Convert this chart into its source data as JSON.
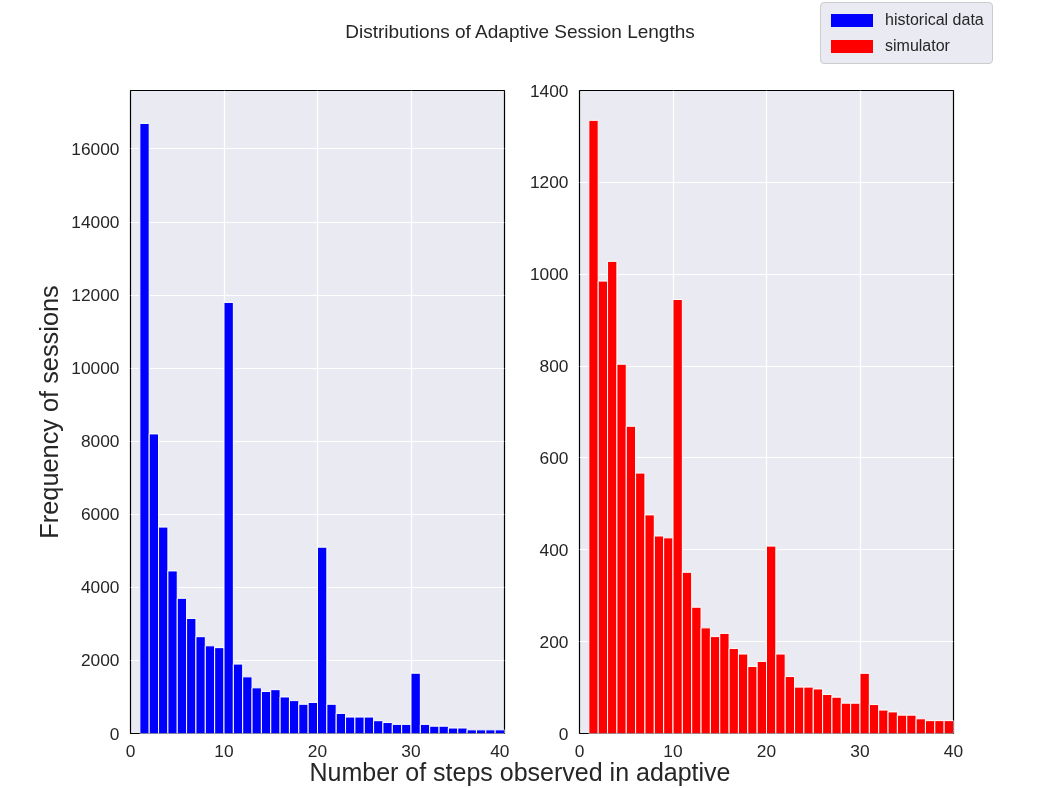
{
  "chart_data": [
    {
      "type": "histogram",
      "title": "Distributions of Adaptive Session Lengths",
      "xlabel": "Number of steps observed in adaptive",
      "ylabel": "Frequency of sessions",
      "bins": [
        1,
        2,
        3,
        4,
        5,
        6,
        7,
        8,
        9,
        10,
        11,
        12,
        13,
        14,
        15,
        16,
        17,
        18,
        19,
        20,
        21,
        22,
        23,
        24,
        25,
        26,
        27,
        28,
        29,
        30,
        31,
        32,
        33,
        34,
        35,
        36,
        37,
        38,
        39,
        40
      ],
      "series": [
        {
          "name": "historical data",
          "color": "#0000ff",
          "values": [
            16700,
            8200,
            5650,
            4450,
            3700,
            3150,
            2650,
            2400,
            2350,
            11800,
            1900,
            1550,
            1250,
            1150,
            1200,
            1000,
            900,
            800,
            850,
            5100,
            800,
            550,
            450,
            450,
            450,
            350,
            300,
            250,
            250,
            1650,
            250,
            200,
            200,
            150,
            150,
            100,
            100,
            100,
            100
          ]
        }
      ],
      "xlim": [
        0,
        40
      ],
      "xticks": [
        0,
        10,
        20,
        30,
        40
      ],
      "ylim": [
        0,
        17600
      ],
      "yticks": [
        0,
        2000,
        4000,
        6000,
        8000,
        10000,
        12000,
        14000,
        16000
      ],
      "grid": true,
      "legend": "top right"
    },
    {
      "type": "histogram",
      "bins": [
        1,
        2,
        3,
        4,
        5,
        6,
        7,
        8,
        9,
        10,
        11,
        12,
        13,
        14,
        15,
        16,
        17,
        18,
        19,
        20,
        21,
        22,
        23,
        24,
        25,
        26,
        27,
        28,
        29,
        30,
        31,
        32,
        33,
        34,
        35,
        36,
        37,
        38,
        39,
        40
      ],
      "series": [
        {
          "name": "simulator",
          "color": "#ff0000",
          "values": [
            1335,
            985,
            1028,
            804,
            669,
            567,
            476,
            430,
            426,
            945,
            351,
            275,
            230,
            211,
            218,
            185,
            173,
            146,
            157,
            408,
            173,
            124,
            101,
            101,
            97,
            85,
            79,
            66,
            66,
            131,
            63,
            51,
            47,
            40,
            40,
            32,
            28,
            28,
            28
          ]
        }
      ],
      "xlim": [
        0,
        40
      ],
      "xticks": [
        0,
        10,
        20,
        30,
        40
      ],
      "ylim": [
        0,
        1400
      ],
      "yticks": [
        0,
        200,
        400,
        600,
        800,
        1000,
        1200,
        1400
      ],
      "grid": true,
      "legend": "top right"
    }
  ]
}
